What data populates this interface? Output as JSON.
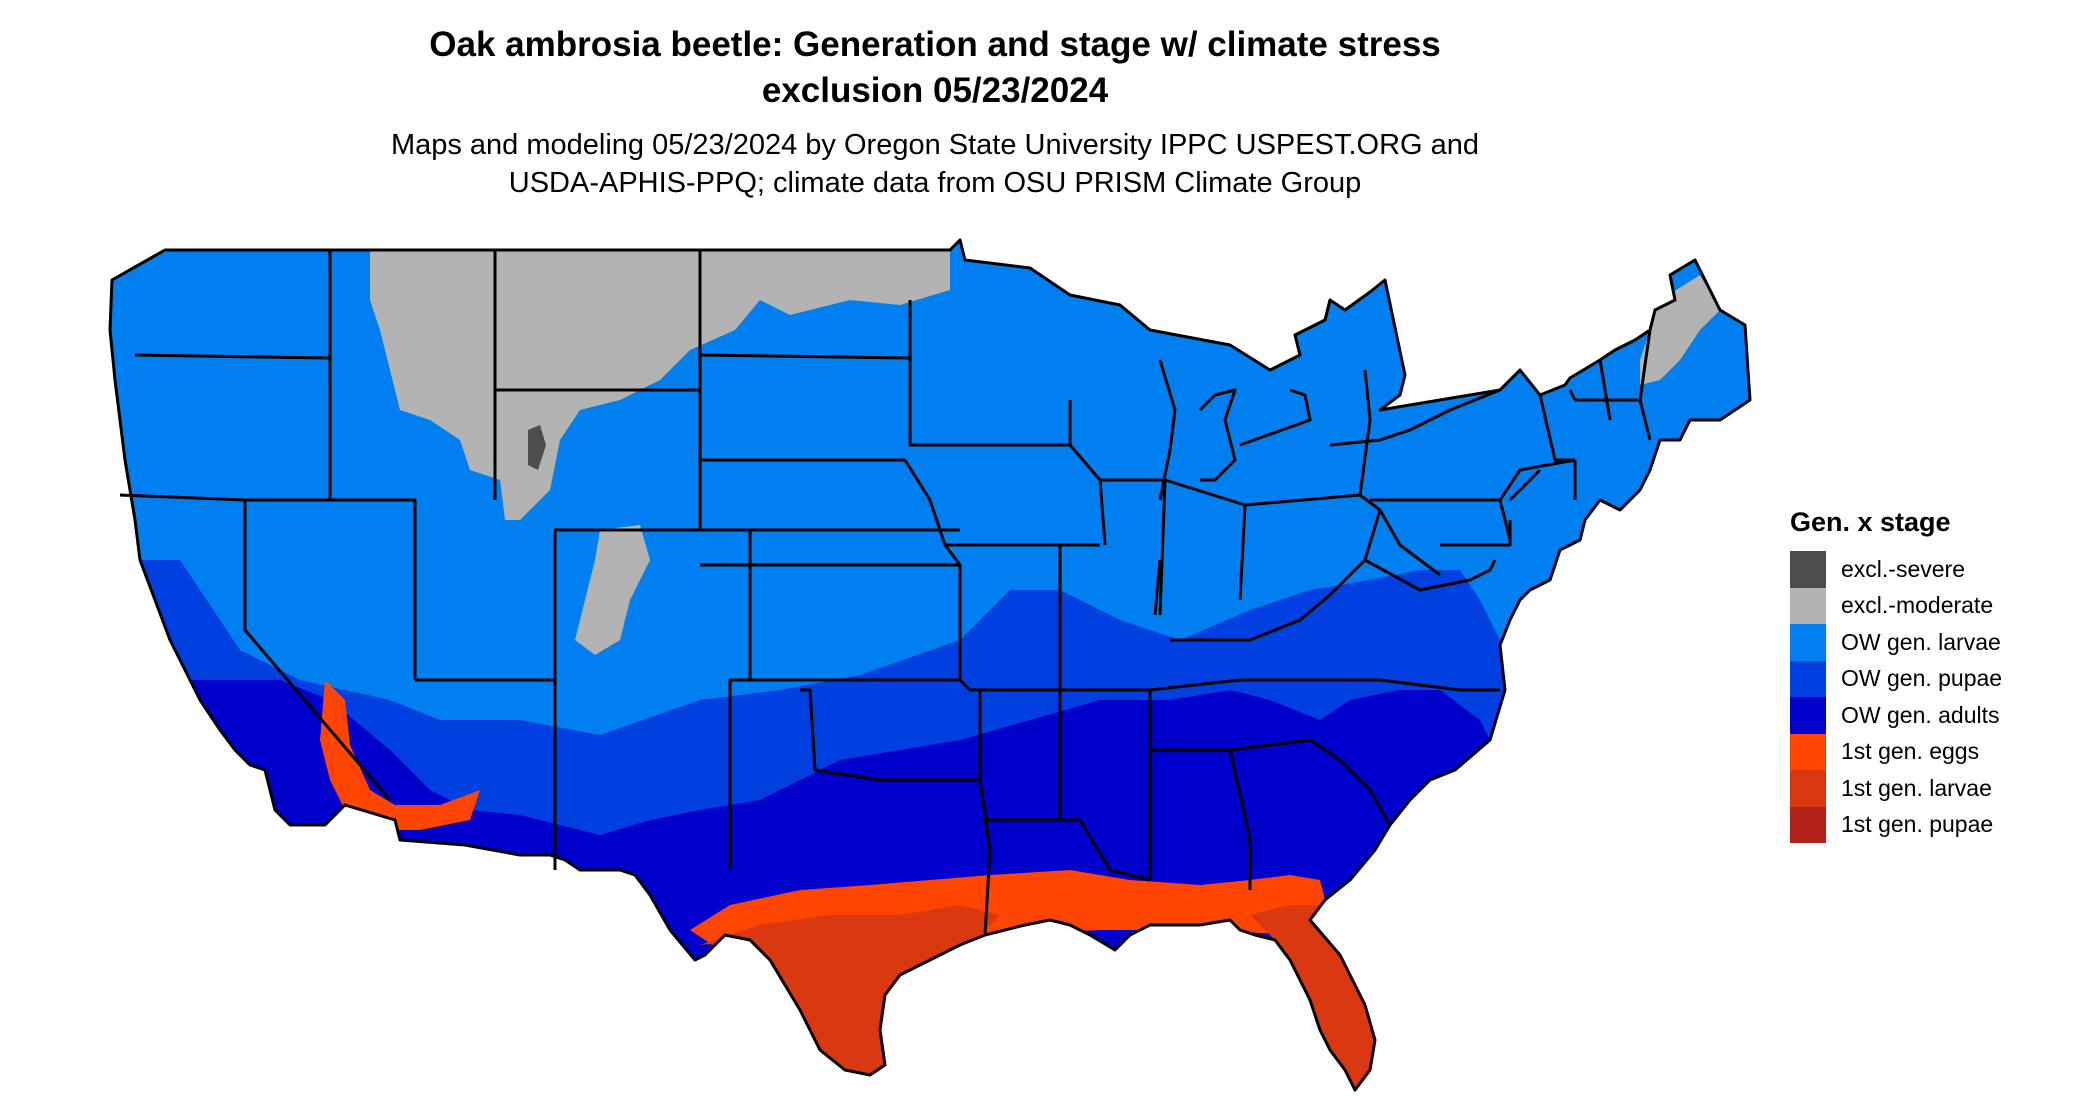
{
  "title": {
    "line1": "Oak ambrosia beetle: Generation and stage w/ climate stress",
    "line2": "exclusion 05/23/2024"
  },
  "subtitle": {
    "line1": "Maps and modeling 05/23/2024 by Oregon State University IPPC USPEST.ORG and",
    "line2": "USDA-APHIS-PPQ; climate data from OSU PRISM Climate Group"
  },
  "legend": {
    "title": "Gen. x stage",
    "items": [
      {
        "label": "excl.-severe",
        "color": "#4d4d4d"
      },
      {
        "label": "excl.-moderate",
        "color": "#b3b3b3"
      },
      {
        "label": "OW gen. larvae",
        "color": "#0080f0"
      },
      {
        "label": "OW gen. pupae",
        "color": "#0040e0"
      },
      {
        "label": "OW gen. adults",
        "color": "#0000cd"
      },
      {
        "label": "1st gen. eggs",
        "color": "#ff4500"
      },
      {
        "label": "1st gen. larvae",
        "color": "#d93810"
      },
      {
        "label": "1st gen. pupae",
        "color": "#b22218"
      }
    ]
  },
  "colors": {
    "state_border": "#000000",
    "background": "#ffffff"
  }
}
